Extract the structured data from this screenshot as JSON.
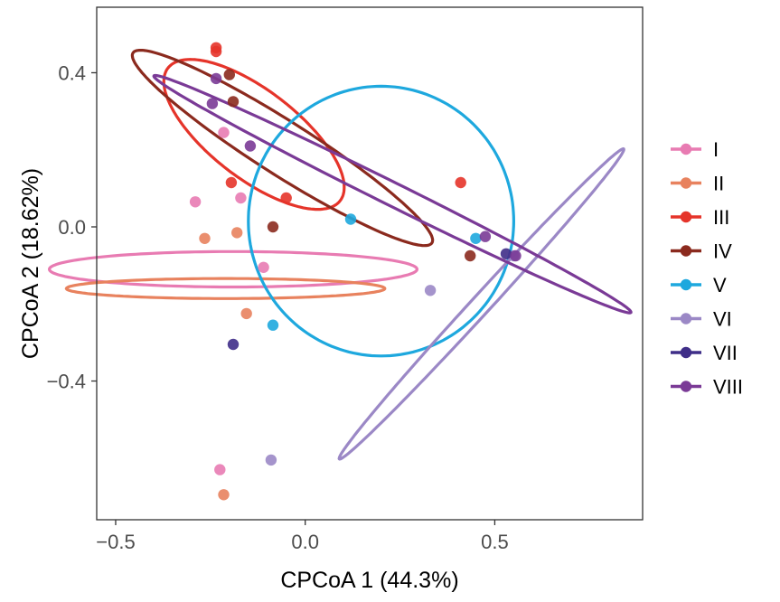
{
  "chart_data": {
    "type": "scatter",
    "xlabel": "CPCoA 1 (44.3%)",
    "ylabel": "CPCoA 2 (18.62%)",
    "xlim": [
      -0.55,
      0.89
    ],
    "ylim": [
      -0.76,
      0.57
    ],
    "xticks": [
      -0.5,
      0.0,
      0.5
    ],
    "xtick_labels": [
      "−0.5",
      "0.0",
      "0.5"
    ],
    "yticks": [
      -0.4,
      0.0,
      0.4
    ],
    "ytick_labels": [
      "−0.4",
      "0.0",
      "0.4"
    ],
    "grid": false,
    "legend_position": "right",
    "series": [
      {
        "name": "I",
        "color": "#E87BB2",
        "points": [
          [
            -0.29,
            0.065
          ],
          [
            -0.215,
            0.245
          ],
          [
            -0.17,
            0.075
          ],
          [
            -0.11,
            -0.105
          ],
          [
            -0.225,
            -0.63
          ]
        ],
        "ellipse": {
          "cx": -0.19,
          "cy": -0.11,
          "rx": 0.046,
          "ry": 0.485,
          "angle_deg": 90
        }
      },
      {
        "name": "II",
        "color": "#E8825E",
        "points": [
          [
            -0.265,
            -0.03
          ],
          [
            -0.18,
            -0.015
          ],
          [
            -0.155,
            -0.225
          ],
          [
            -0.215,
            -0.695
          ]
        ],
        "ellipse": {
          "cx": -0.21,
          "cy": -0.16,
          "rx": 0.026,
          "ry": 0.42,
          "angle_deg": 90
        }
      },
      {
        "name": "III",
        "color": "#E5342A",
        "points": [
          [
            -0.235,
            0.465
          ],
          [
            -0.235,
            0.455
          ],
          [
            -0.195,
            0.115
          ],
          [
            -0.05,
            0.075
          ],
          [
            0.41,
            0.115
          ]
        ],
        "ellipse": {
          "cx": -0.135,
          "cy": 0.24,
          "rx": 0.285,
          "ry": 0.115,
          "angle_deg": -37
        }
      },
      {
        "name": "IV",
        "color": "#8B2A1E",
        "points": [
          [
            -0.2,
            0.395
          ],
          [
            -0.19,
            0.325
          ],
          [
            -0.085,
            0.0
          ],
          [
            0.435,
            -0.075
          ]
        ],
        "ellipse": {
          "cx": -0.06,
          "cy": 0.205,
          "rx": 0.465,
          "ry": 0.07,
          "angle_deg": -32
        }
      },
      {
        "name": "V",
        "color": "#1EA8DE",
        "points": [
          [
            0.12,
            0.02
          ],
          [
            0.45,
            -0.03
          ],
          [
            -0.085,
            -0.255
          ]
        ],
        "ellipse": {
          "cx": 0.2,
          "cy": 0.015,
          "rx": 0.35,
          "ry": 0.35,
          "angle_deg": 0
        }
      },
      {
        "name": "VI",
        "color": "#9B88C6",
        "points": [
          [
            0.33,
            -0.165
          ],
          [
            -0.09,
            -0.605
          ],
          [
            0.55,
            -0.075
          ]
        ],
        "ellipse": {
          "cx": 0.465,
          "cy": -0.2,
          "rx": 0.55,
          "ry": 0.025,
          "angle_deg": 47
        }
      },
      {
        "name": "VII",
        "color": "#3F2E88",
        "points": [
          [
            -0.19,
            -0.305
          ],
          [
            0.53,
            -0.07
          ]
        ],
        "ellipse": null
      },
      {
        "name": "VIII",
        "color": "#7A3A96",
        "points": [
          [
            -0.235,
            0.385
          ],
          [
            -0.245,
            0.32
          ],
          [
            -0.145,
            0.21
          ],
          [
            0.475,
            -0.025
          ],
          [
            0.555,
            -0.075
          ]
        ],
        "ellipse": {
          "cx": 0.23,
          "cy": 0.085,
          "rx": 0.7,
          "ry": 0.03,
          "angle_deg": -26
        }
      }
    ]
  }
}
